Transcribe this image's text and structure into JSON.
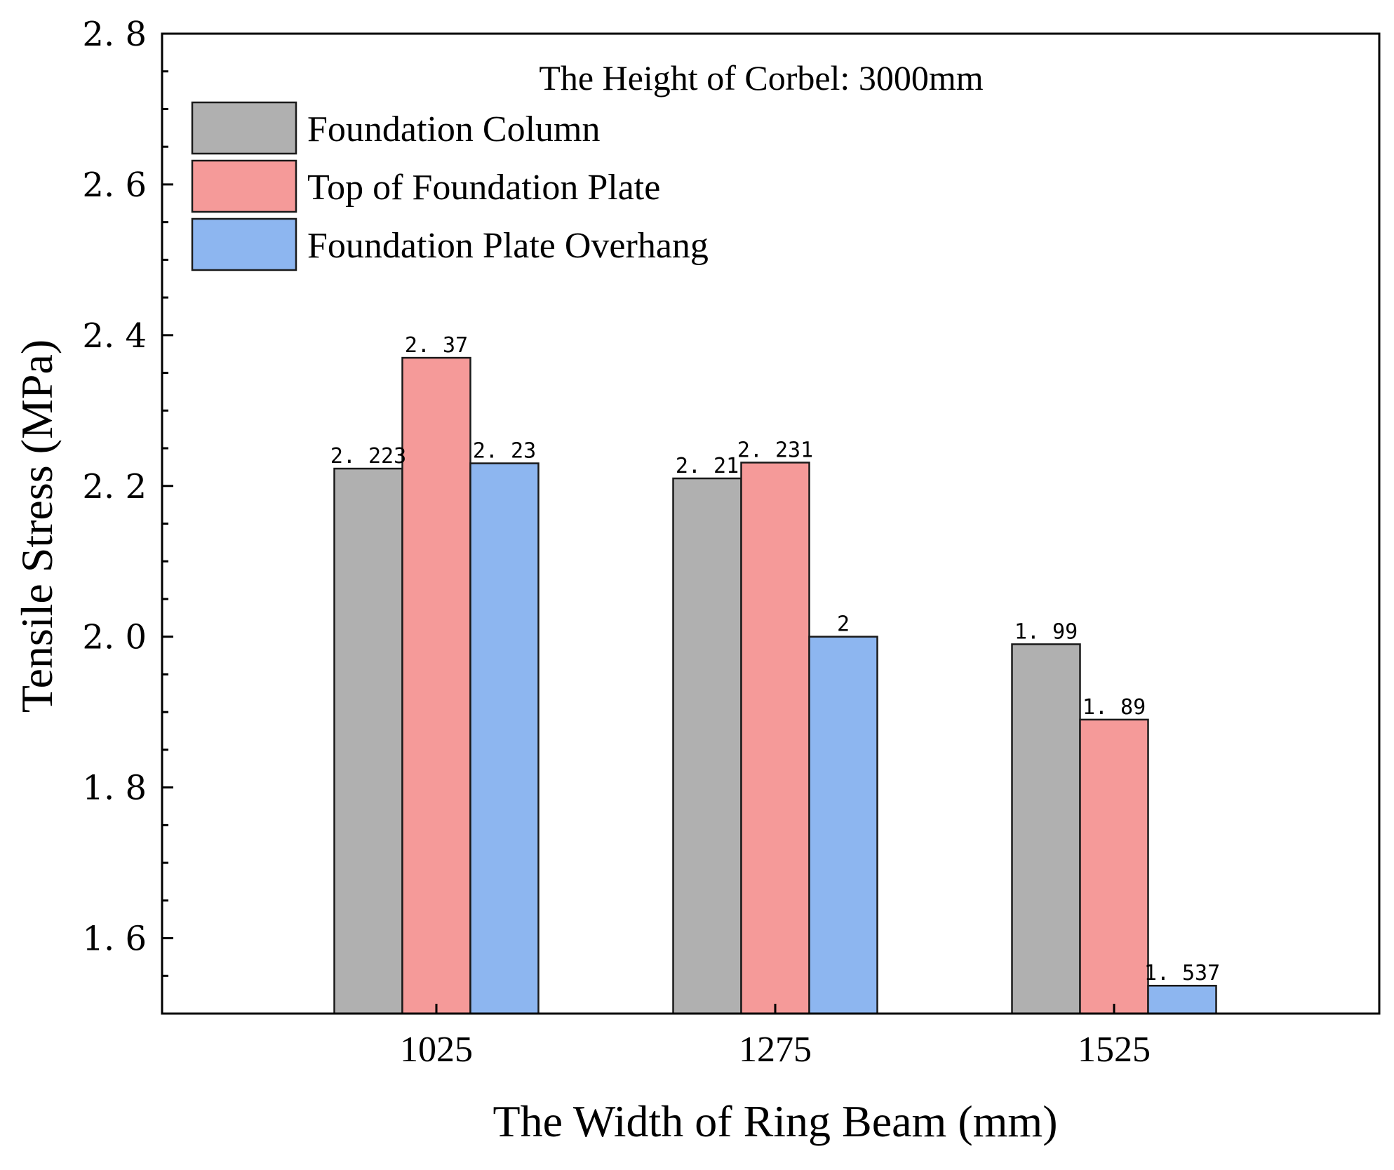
{
  "chart_data": {
    "type": "bar",
    "title": "The Height of Corbel: 3000mm",
    "xlabel": "The Width of Ring Beam (mm)",
    "ylabel": "Tensile Stress (MPa)",
    "categories": [
      "1025",
      "1275",
      "1525"
    ],
    "ylim": [
      1.5,
      2.8
    ],
    "yticks": [
      1.6,
      1.8,
      2.0,
      2.2,
      2.4,
      2.6,
      2.8
    ],
    "ytick_labels": [
      "1. 6",
      "1. 8",
      "2. 0",
      "2. 2",
      "2. 4",
      "2. 6",
      "2. 8"
    ],
    "grid": false,
    "legend_position": "top-left",
    "series": [
      {
        "name": "Foundation Column",
        "color": "#b0b0b0",
        "values": [
          2.223,
          2.21,
          1.99
        ],
        "labels": [
          "2. 223",
          "2. 21",
          "1. 99"
        ]
      },
      {
        "name": "Top of Foundation Plate",
        "color": "#f59a99",
        "values": [
          2.37,
          2.231,
          1.89
        ],
        "labels": [
          "2. 37",
          "2. 231",
          "1. 89"
        ]
      },
      {
        "name": "Foundation Plate Overhang",
        "color": "#8db6f0",
        "values": [
          2.23,
          2.0,
          1.537
        ],
        "labels": [
          "2. 23",
          "2",
          "1. 537"
        ]
      }
    ]
  }
}
